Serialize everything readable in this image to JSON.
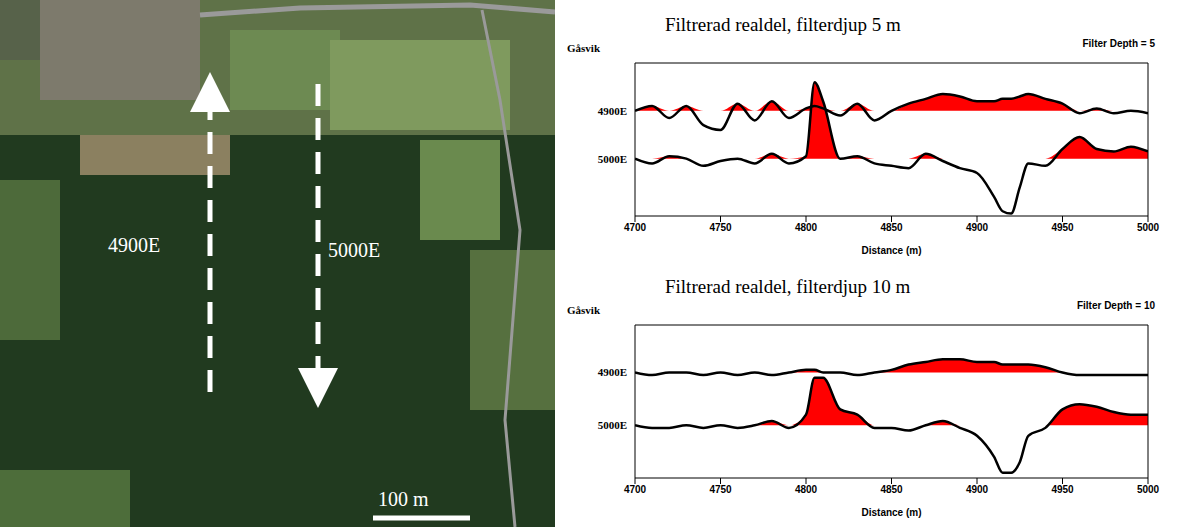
{
  "image": {
    "labels": [
      "4900E",
      "5000E"
    ],
    "scale_bar": "100 m"
  },
  "chart_data": [
    {
      "type": "line",
      "title": "Filtrerad realdel, filterdjup 5 m",
      "subtitle": "Filter Depth = 5",
      "ylabel": "Gåsvik",
      "xlabel": "Distance (m)",
      "x": [
        4700,
        4710,
        4720,
        4730,
        4740,
        4750,
        4760,
        4770,
        4780,
        4790,
        4800,
        4805,
        4810,
        4820,
        4830,
        4840,
        4850,
        4860,
        4870,
        4880,
        4890,
        4900,
        4910,
        4915,
        4920,
        4925,
        4930,
        4940,
        4950,
        4960,
        4970,
        4980,
        4990,
        5000
      ],
      "xlim": [
        4700,
        5000
      ],
      "xticks": [
        4700,
        4750,
        4800,
        4850,
        4900,
        4950,
        5000
      ],
      "ylim": [
        -12,
        20
      ],
      "yticks": [
        {
          "value": 0,
          "label": "5000E"
        },
        {
          "value": 10,
          "label": "4900E"
        }
      ],
      "color": "#ff0000",
      "series": [
        {
          "name": "4900E",
          "color": "#000000",
          "values": [
            10,
            11,
            8.5,
            11,
            7,
            6,
            11.5,
            8,
            12,
            8.5,
            10.5,
            11,
            10.5,
            9,
            11.5,
            8,
            10,
            11.5,
            12.5,
            13.5,
            13,
            12,
            12,
            12.5,
            12.5,
            13,
            13.5,
            12.5,
            11.5,
            9.5,
            10.5,
            9.5,
            10,
            9.5
          ]
        },
        {
          "name": "5000E",
          "color": "#000000",
          "values": [
            0,
            -1,
            0.5,
            0,
            -1.5,
            -0.5,
            0,
            -1,
            1,
            -1,
            0.5,
            16,
            12,
            0,
            0.5,
            -1,
            -1.5,
            -2,
            1,
            -0.5,
            -2,
            -3,
            -8,
            -11,
            -11.5,
            -6,
            -1,
            -1.5,
            2,
            4.5,
            2,
            1.5,
            2.5,
            1.5
          ]
        }
      ]
    },
    {
      "type": "line",
      "title": "Filtrerad realdel, filterdjup 10 m",
      "subtitle": "Filter Depth = 10",
      "ylabel": "Gåsvik",
      "xlabel": "Distance (m)",
      "x": [
        4700,
        4710,
        4720,
        4730,
        4740,
        4750,
        4760,
        4770,
        4780,
        4790,
        4800,
        4805,
        4810,
        4820,
        4830,
        4840,
        4850,
        4860,
        4870,
        4880,
        4890,
        4900,
        4910,
        4915,
        4920,
        4925,
        4930,
        4940,
        4950,
        4960,
        4970,
        4980,
        4990,
        5000
      ],
      "xlim": [
        4700,
        5000
      ],
      "xticks": [
        4700,
        4750,
        4800,
        4850,
        4900,
        4950,
        5000
      ],
      "ylim": [
        -10,
        19
      ],
      "yticks": [
        {
          "value": 0,
          "label": "5000E"
        },
        {
          "value": 10,
          "label": "4900E"
        }
      ],
      "color": "#ff0000",
      "series": [
        {
          "name": "4900E",
          "color": "#000000",
          "values": [
            10,
            9.5,
            10,
            10,
            9.5,
            10,
            9.5,
            10,
            9.5,
            10,
            10.5,
            10.5,
            10,
            10,
            9.5,
            10,
            10.5,
            11.5,
            12,
            12.5,
            12.5,
            12,
            12,
            11.5,
            11.5,
            11.5,
            11.5,
            11,
            10,
            9.5,
            9.5,
            9.5,
            9.5,
            9.5
          ]
        },
        {
          "name": "5000E",
          "color": "#000000",
          "values": [
            0,
            -0.5,
            -0.5,
            0,
            -0.5,
            0,
            -0.5,
            0,
            0.8,
            -0.5,
            2,
            9,
            9,
            3,
            2,
            -0.5,
            -0.5,
            -1,
            0,
            0.8,
            -0.5,
            -2,
            -6,
            -9,
            -9,
            -7,
            -2,
            -0.5,
            3,
            4,
            3.5,
            2.5,
            2,
            2
          ]
        }
      ]
    }
  ]
}
